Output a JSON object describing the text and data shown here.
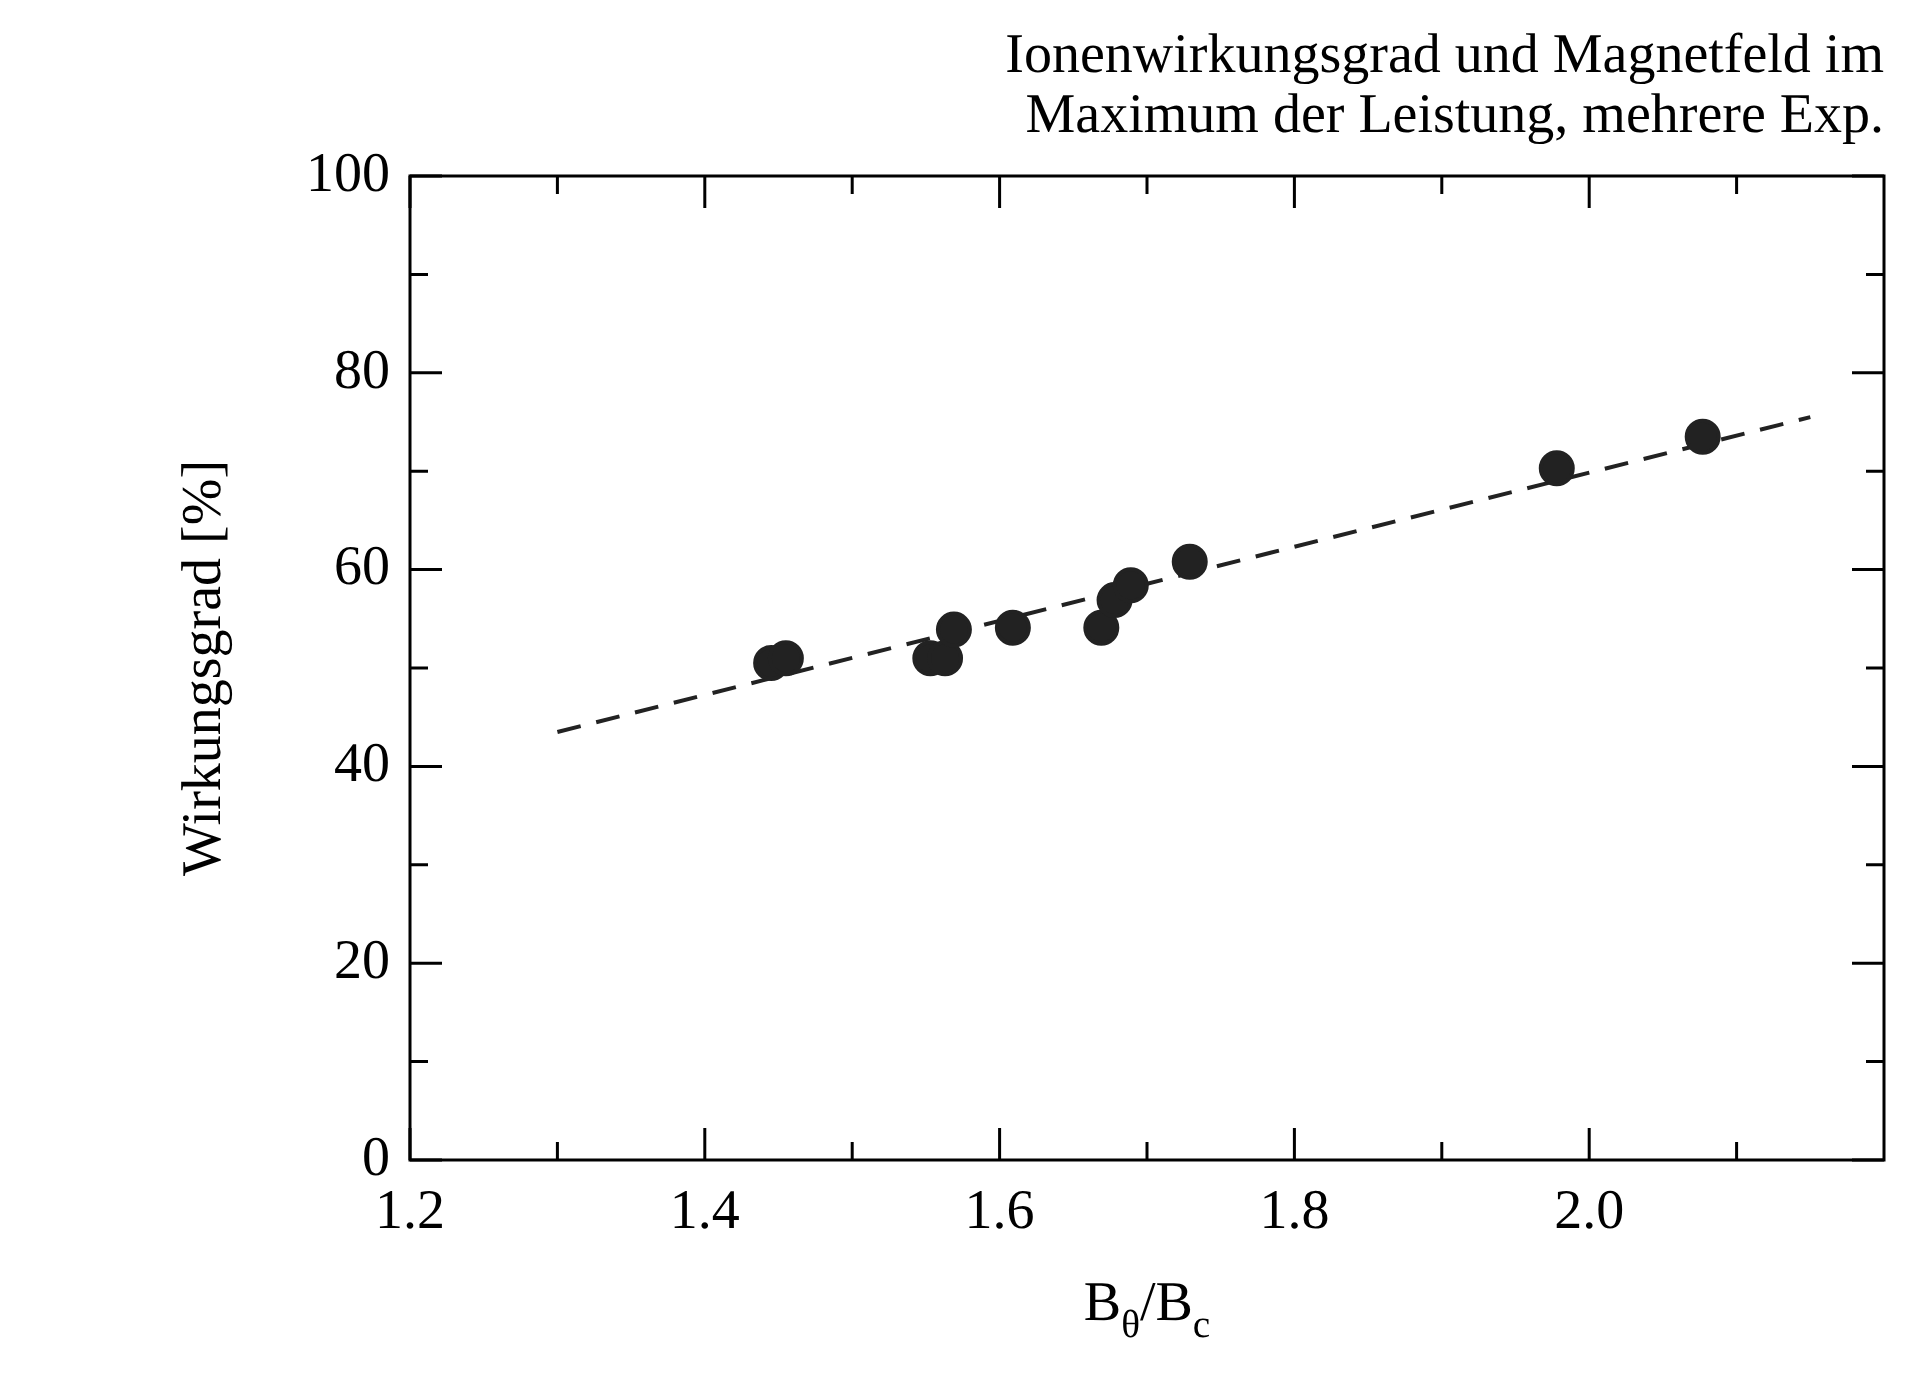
{
  "chart_data": {
    "type": "scatter",
    "title": "Ionenwirkungsgrad und Magnetfeld im\nMaximum der Leistung, mehrere Exp.",
    "xlabel": "B$_{θ}$/B$_{c}$",
    "ylabel": "Wirkungsgrad [%]",
    "xlim": [
      1.2,
      2.2
    ],
    "xticks": [
      {
        "value": 1.2,
        "label": "1.2"
      },
      {
        "value": 1.3,
        "label": null
      },
      {
        "value": 1.4,
        "label": "1.4"
      },
      {
        "value": 1.5,
        "label": null
      },
      {
        "value": 1.6,
        "label": "1.6"
      },
      {
        "value": 1.7,
        "label": null
      },
      {
        "value": 1.8,
        "label": "1.8"
      },
      {
        "value": 1.9,
        "label": null
      },
      {
        "value": 2.0,
        "label": "2.0"
      },
      {
        "value": 2.1,
        "label": null
      }
    ],
    "ylim": [
      0,
      100
    ],
    "yticks": [
      0,
      {
        "value": 10,
        "label": null
      },
      20,
      {
        "value": 30,
        "label": null
      },
      40,
      {
        "value": 50,
        "label": null
      },
      60,
      {
        "value": 70,
        "label": null
      },
      80,
      {
        "value": 90,
        "label": null
      },
      100
    ],
    "grid": false,
    "legend": false,
    "marker": "circle",
    "series": [
      {
        "type": "scatter",
        "color": "#222222",
        "x": [
          1.445,
          1.455,
          1.553,
          1.563,
          1.569,
          1.609,
          1.669,
          1.678,
          1.689,
          1.729,
          1.978,
          2.077
        ],
        "values": [
          50.5,
          51,
          51,
          51,
          53.9,
          54.1,
          54.1,
          56.9,
          58.4,
          60.8,
          70.3,
          73.5
        ]
      },
      {
        "type": "line",
        "color": "#222222",
        "line_style": "dashed",
        "marker": "none",
        "x": [
          1.3,
          2.15
        ],
        "values": [
          43.5,
          75.5
        ]
      }
    ]
  }
}
